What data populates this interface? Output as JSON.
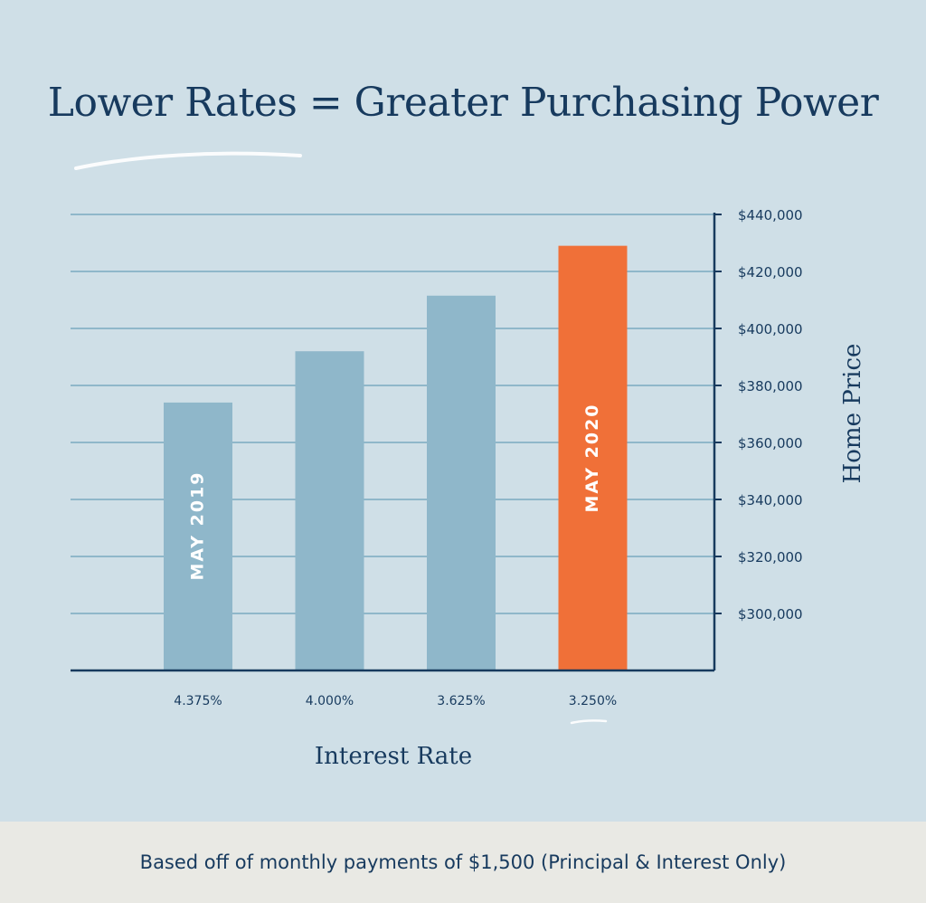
{
  "page": {
    "title": "Lower Rates = Greater Purchasing Power",
    "footnote": "Based off of monthly payments of $1,500 (Principal & Interest Only)"
  },
  "colors": {
    "background": "#cfdfe7",
    "footer_background": "#e9e9e4",
    "navy": "#173a5e",
    "bar_blue": "#8fb7ca",
    "bar_highlight": "#f07038",
    "gridline": "#8fb7ca"
  },
  "chart_data": {
    "type": "bar",
    "title": "Lower Rates = Greater Purchasing Power",
    "xlabel": "Interest Rate",
    "ylabel": "Home Price",
    "ylim": [
      280000,
      440000
    ],
    "yticks": [
      300000,
      320000,
      340000,
      360000,
      380000,
      400000,
      420000,
      440000
    ],
    "ytick_labels": [
      "$300,000",
      "$320,000",
      "$340,000",
      "$360,000",
      "$380,000",
      "$400,000",
      "$420,000",
      "$440,000"
    ],
    "categories": [
      "4.375%",
      "4.000%",
      "3.625%",
      "3.250%"
    ],
    "values": [
      374000,
      392000,
      411500,
      429000
    ],
    "bar_labels": [
      "MAY 2019",
      "",
      "",
      "MAY 2020"
    ],
    "highlight_index": 3,
    "grid": true,
    "y_axis_side": "right"
  }
}
